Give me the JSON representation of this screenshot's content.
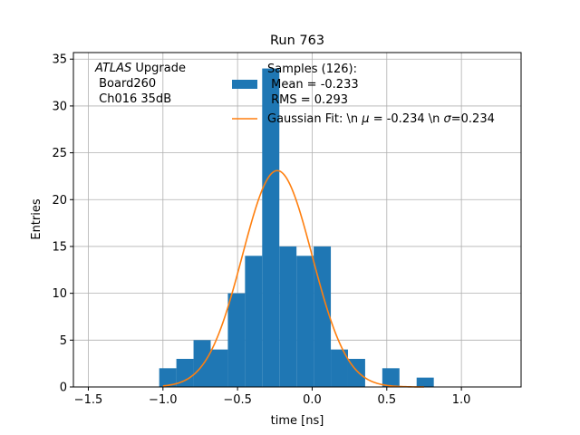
{
  "chart_data": {
    "type": "bar",
    "title": "Run 763",
    "xlabel": "time [ns]",
    "ylabel": "Entries",
    "xlim": [
      -1.6,
      1.4
    ],
    "ylim": [
      0,
      35.7
    ],
    "xticks": [
      -1.5,
      -1.0,
      -0.5,
      0.0,
      0.5,
      1.0
    ],
    "xtick_labels": [
      "−1.5",
      "−1.0",
      "−0.5",
      "0.0",
      "0.5",
      "1.0"
    ],
    "yticks": [
      0,
      5,
      10,
      15,
      20,
      25,
      30,
      35
    ],
    "ytick_labels": [
      "0",
      "5",
      "10",
      "15",
      "20",
      "25",
      "30",
      "35"
    ],
    "grid": true,
    "bar_color": "#1f77b4",
    "fit_color": "#ff7f0e",
    "histogram": {
      "bin_width": 0.115,
      "bin_left_edges": [
        -1.025,
        -0.91,
        -0.795,
        -0.68,
        -0.565,
        -0.45,
        -0.335,
        -0.22,
        -0.105,
        0.01,
        0.125,
        0.24,
        0.355,
        0.47,
        0.585,
        0.7
      ],
      "counts": [
        2,
        3,
        5,
        4,
        10,
        14,
        34,
        15,
        14,
        15,
        4,
        3,
        0,
        2,
        0,
        1
      ]
    },
    "gaussian_fit": {
      "amplitude": 23.1,
      "mu": -0.234,
      "sigma": 0.234,
      "x_range": [
        -1.0,
        0.75
      ]
    },
    "annotation": {
      "experiment": "ATLAS",
      "line1_rest": " Upgrade",
      "line2": " Board260",
      "line3": " Ch016 35dB"
    },
    "legend": {
      "placement": "top-right",
      "samples_line1": "Samples (126):",
      "samples_line2": " Mean = -0.233",
      "samples_line3": " RMS = 0.293",
      "fit_prefix": "Gaussian Fit: \\n ",
      "fit_mu_symbol": "μ",
      "fit_mid": " = -0.234 \\n ",
      "fit_sigma_symbol": "σ",
      "fit_suffix": "=0.234"
    }
  }
}
